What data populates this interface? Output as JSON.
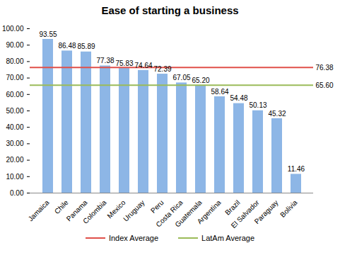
{
  "chart_data": {
    "type": "bar",
    "title": "Ease of starting a business",
    "categories": [
      "Jamaica",
      "Chile",
      "Panama",
      "Colombia",
      "Mexico",
      "Uruguay",
      "Peru",
      "Costa Rica",
      "Guatemala",
      "Argentina",
      "Brazil",
      "El Salvador",
      "Paraguay",
      "Bolivia"
    ],
    "values": [
      93.55,
      86.48,
      85.89,
      77.38,
      75.83,
      74.64,
      72.39,
      67.05,
      65.2,
      58.64,
      54.48,
      50.13,
      45.32,
      11.46
    ],
    "value_labels": [
      "93.55",
      "86.48",
      "85.89",
      "77.38",
      "75.83",
      "74.64",
      "72.39",
      "67.05",
      "65.20",
      "58.64",
      "54.48",
      "50.13",
      "45.32",
      "11.46"
    ],
    "color": "#8db6e6",
    "ylim": [
      0,
      100
    ],
    "yticks": [
      {
        "value": 0,
        "label": "0.00"
      },
      {
        "value": 10,
        "label": "10.00"
      },
      {
        "value": 20,
        "label": "20.00"
      },
      {
        "value": 30,
        "label": "30.00"
      },
      {
        "value": 40,
        "label": "40.00"
      },
      {
        "value": 50,
        "label": "50.00"
      },
      {
        "value": 60,
        "label": "60.00"
      },
      {
        "value": 70,
        "label": "70.00"
      },
      {
        "value": 80,
        "label": "80.00"
      },
      {
        "value": 90,
        "label": "90.00"
      },
      {
        "value": 100,
        "label": "100.00"
      }
    ],
    "grid": false,
    "data_labels": true,
    "legend": "bottom",
    "reference_lines": [
      {
        "name": "Index Average",
        "value": 76.38,
        "value_label": "76.38",
        "color": "#e0504a"
      },
      {
        "name": "LatAm Average",
        "value": 65.6,
        "value_label": "65.60",
        "color": "#9bbb59"
      }
    ]
  }
}
